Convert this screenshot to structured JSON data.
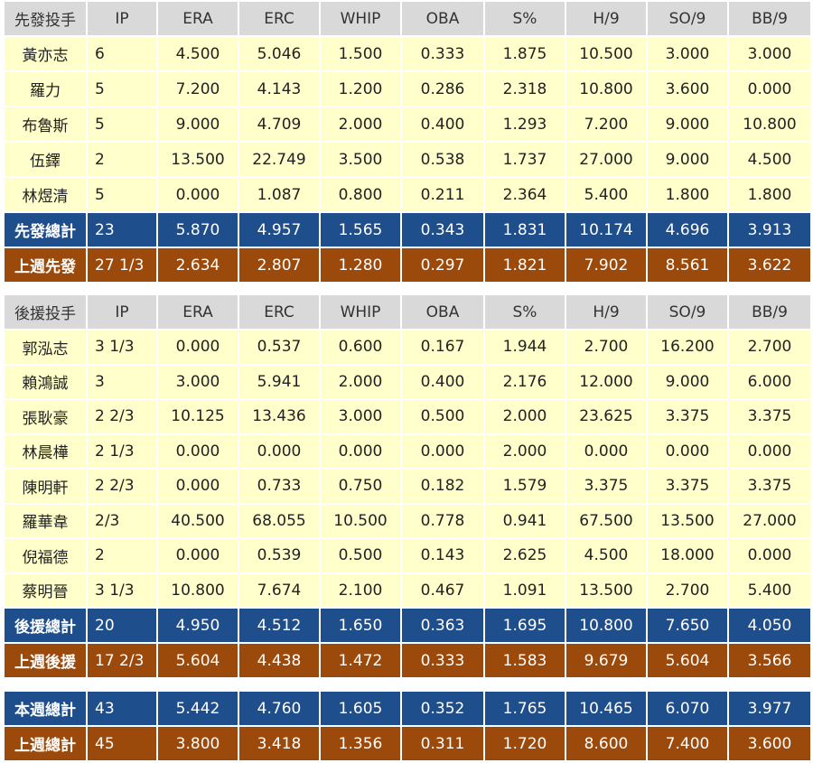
{
  "columns": [
    "IP",
    "ERA",
    "ERC",
    "WHIP",
    "OBA",
    "S%",
    "H/9",
    "SO/9",
    "BB/9"
  ],
  "starters": {
    "header": "先發投手",
    "rows": [
      {
        "name": "黃亦志",
        "values": [
          "6",
          "4.500",
          "5.046",
          "1.500",
          "0.333",
          "1.875",
          "10.500",
          "3.000",
          "3.000"
        ]
      },
      {
        "name": "羅力",
        "values": [
          "5",
          "7.200",
          "4.143",
          "1.200",
          "0.286",
          "2.318",
          "10.800",
          "3.600",
          "0.000"
        ]
      },
      {
        "name": "布魯斯",
        "values": [
          "5",
          "9.000",
          "4.709",
          "2.000",
          "0.400",
          "1.293",
          "7.200",
          "9.000",
          "10.800"
        ]
      },
      {
        "name": "伍鐸",
        "values": [
          "2",
          "13.500",
          "22.749",
          "3.500",
          "0.538",
          "1.737",
          "27.000",
          "9.000",
          "4.500"
        ]
      },
      {
        "name": "林煜清",
        "values": [
          "5",
          "0.000",
          "1.087",
          "0.800",
          "0.211",
          "2.364",
          "5.400",
          "1.800",
          "1.800"
        ]
      }
    ],
    "total": {
      "name": "先發總計",
      "values": [
        "23",
        "5.870",
        "4.957",
        "1.565",
        "0.343",
        "1.831",
        "10.174",
        "4.696",
        "3.913"
      ]
    },
    "last_week": {
      "name": "上週先發",
      "values": [
        "27 1/3",
        "2.634",
        "2.807",
        "1.280",
        "0.297",
        "1.821",
        "7.902",
        "8.561",
        "3.622"
      ]
    }
  },
  "relievers": {
    "header": "後援投手",
    "rows": [
      {
        "name": "郭泓志",
        "values": [
          "3 1/3",
          "0.000",
          "0.537",
          "0.600",
          "0.167",
          "1.944",
          "2.700",
          "16.200",
          "2.700"
        ]
      },
      {
        "name": "賴鴻誠",
        "values": [
          "3",
          "3.000",
          "5.941",
          "2.000",
          "0.400",
          "2.176",
          "12.000",
          "9.000",
          "6.000"
        ]
      },
      {
        "name": "張耿豪",
        "values": [
          "2 2/3",
          "10.125",
          "13.436",
          "3.000",
          "0.500",
          "2.000",
          "23.625",
          "3.375",
          "3.375"
        ]
      },
      {
        "name": "林晨樺",
        "values": [
          "2 1/3",
          "0.000",
          "0.000",
          "0.000",
          "0.000",
          "2.000",
          "0.000",
          "0.000",
          "0.000"
        ]
      },
      {
        "name": "陳明軒",
        "values": [
          "2 2/3",
          "0.000",
          "0.733",
          "0.750",
          "0.182",
          "1.579",
          "3.375",
          "3.375",
          "3.375"
        ]
      },
      {
        "name": "羅華韋",
        "values": [
          "2/3",
          "40.500",
          "68.055",
          "10.500",
          "0.778",
          "0.941",
          "67.500",
          "13.500",
          "27.000"
        ]
      },
      {
        "name": "倪福德",
        "values": [
          "2",
          "0.000",
          "0.539",
          "0.500",
          "0.143",
          "2.625",
          "4.500",
          "18.000",
          "0.000"
        ]
      },
      {
        "name": "蔡明晉",
        "values": [
          "3 1/3",
          "10.800",
          "7.674",
          "2.100",
          "0.467",
          "1.091",
          "13.500",
          "2.700",
          "5.400"
        ]
      }
    ],
    "total": {
      "name": "後援總計",
      "values": [
        "20",
        "4.950",
        "4.512",
        "1.650",
        "0.363",
        "1.695",
        "10.800",
        "7.650",
        "4.050"
      ]
    },
    "last_week": {
      "name": "上週後援",
      "values": [
        "17 2/3",
        "5.604",
        "4.438",
        "1.472",
        "0.333",
        "1.583",
        "9.679",
        "5.604",
        "3.566"
      ]
    }
  },
  "summary": {
    "this_week": {
      "name": "本週總計",
      "values": [
        "43",
        "5.442",
        "4.760",
        "1.605",
        "0.352",
        "1.765",
        "10.465",
        "6.070",
        "3.977"
      ]
    },
    "last_week": {
      "name": "上週總計",
      "values": [
        "45",
        "3.800",
        "3.418",
        "1.356",
        "0.311",
        "1.720",
        "8.600",
        "7.400",
        "3.600"
      ]
    }
  }
}
